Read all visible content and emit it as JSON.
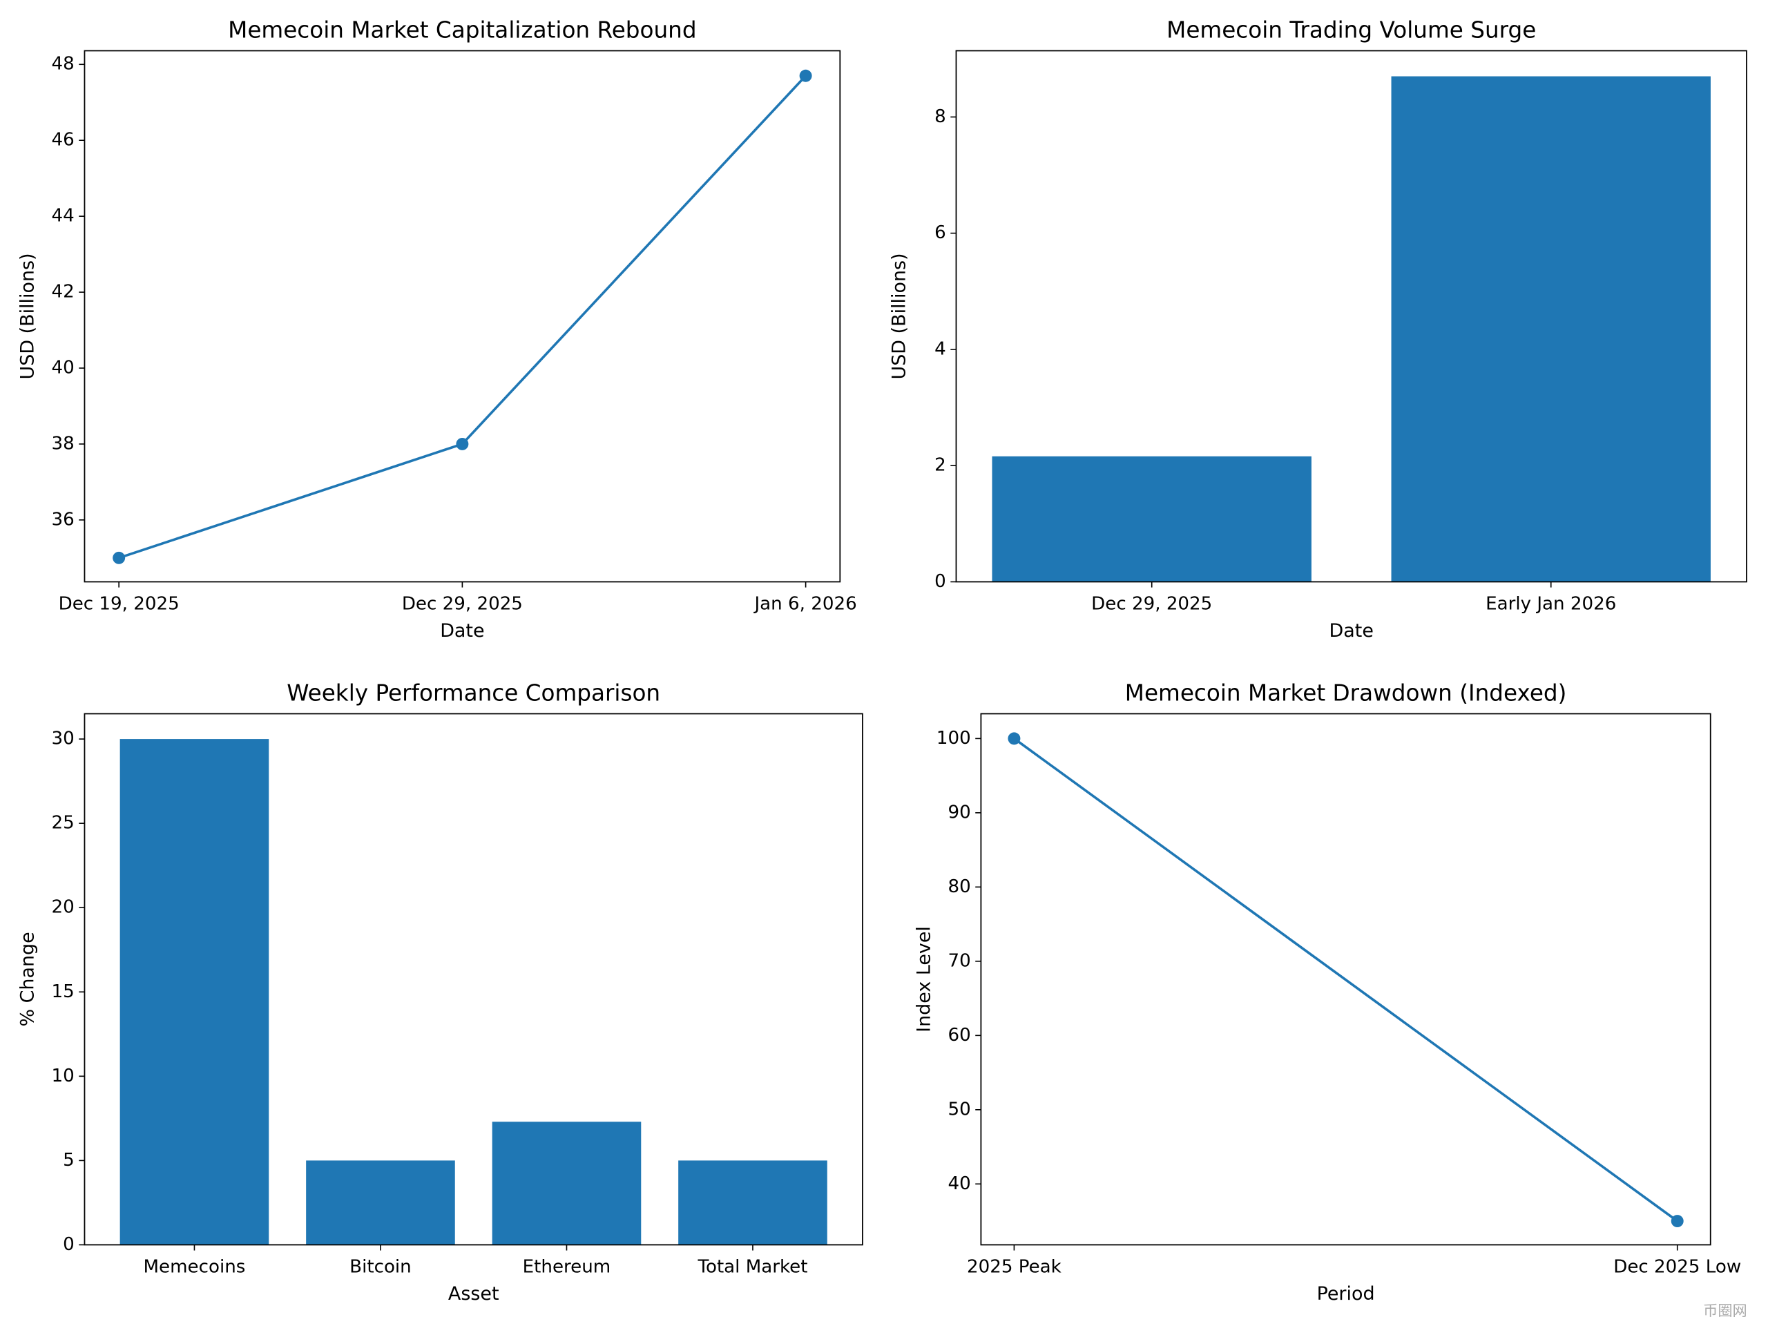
{
  "chart_data": [
    {
      "type": "line",
      "title": "Memecoin Market Capitalization Rebound",
      "x_label": "Date",
      "y_label": "USD (Billions)",
      "categories": [
        "Dec 19, 2025",
        "Dec 29, 2025",
        "Jan 6, 2026"
      ],
      "values": [
        35.0,
        38.0,
        47.7
      ],
      "color": "#1f77b4",
      "ylim": [
        34.37,
        48.36
      ],
      "yticks": [
        36,
        38,
        40,
        42,
        44,
        46,
        48
      ]
    },
    {
      "type": "bar",
      "title": "Memecoin Trading Volume Surge",
      "x_label": "Date",
      "y_label": "USD (Billions)",
      "categories": [
        "Dec 29, 2025",
        "Early Jan 2026"
      ],
      "values": [
        2.16,
        8.7
      ],
      "color": "#1f77b4",
      "ylim": [
        0,
        9.14
      ],
      "yticks": [
        0,
        2,
        4,
        6,
        8
      ]
    },
    {
      "type": "bar",
      "title": "Weekly Performance Comparison",
      "x_label": "Asset",
      "y_label": "% Change",
      "categories": [
        "Memecoins",
        "Bitcoin",
        "Ethereum",
        "Total Market"
      ],
      "values": [
        30,
        5,
        7.3,
        5
      ],
      "color": "#1f77b4",
      "ylim": [
        0,
        31.5
      ],
      "yticks": [
        0,
        5,
        10,
        15,
        20,
        25,
        30
      ]
    },
    {
      "type": "line",
      "title": "Memecoin Market Drawdown (Indexed)",
      "x_label": "Period",
      "y_label": "Index Level",
      "categories": [
        "2025 Peak",
        "Dec 2025 Low"
      ],
      "values": [
        100,
        35
      ],
      "color": "#1f77b4",
      "ylim": [
        31.8,
        103.34
      ],
      "yticks": [
        40,
        50,
        60,
        70,
        80,
        90,
        100
      ]
    }
  ],
  "watermark": "币圈网"
}
